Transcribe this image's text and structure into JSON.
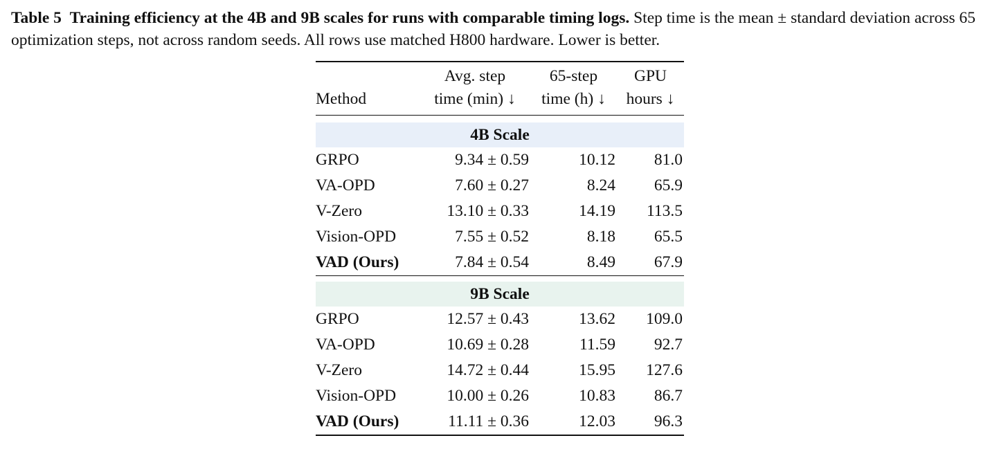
{
  "caption": {
    "label": "Table 5",
    "title": "Training efficiency at the 4B and 9B scales for runs with comparable timing logs.",
    "text": "Step time is the mean ± standard deviation across 65 optimization steps, not across random seeds. All rows use matched H800 hardware. Lower is better."
  },
  "table": {
    "headers": {
      "method": "Method",
      "step_line1": "Avg. step",
      "step_line2": "time (min) ↓",
      "time_line1": "65-step",
      "time_line2": "time (h) ↓",
      "gpu_line1": "GPU",
      "gpu_line2": "hours ↓"
    },
    "sections": [
      {
        "title": "4B Scale",
        "rows": [
          {
            "method": "GRPO",
            "step": "9.34 ± 0.59",
            "time": "10.12",
            "gpu": "81.0"
          },
          {
            "method": "VA-OPD",
            "step": "7.60 ± 0.27",
            "time": "8.24",
            "gpu": "65.9"
          },
          {
            "method": "V-Zero",
            "step": "13.10 ± 0.33",
            "time": "14.19",
            "gpu": "113.5"
          },
          {
            "method": "Vision-OPD",
            "step": "7.55 ± 0.52",
            "time": "8.18",
            "gpu": "65.5"
          },
          {
            "method": "VAD (Ours)",
            "step": "7.84 ± 0.54",
            "time": "8.49",
            "gpu": "67.9"
          }
        ]
      },
      {
        "title": "9B Scale",
        "rows": [
          {
            "method": "GRPO",
            "step": "12.57 ± 0.43",
            "time": "13.62",
            "gpu": "109.0"
          },
          {
            "method": "VA-OPD",
            "step": "10.69 ± 0.28",
            "time": "11.59",
            "gpu": "92.7"
          },
          {
            "method": "V-Zero",
            "step": "14.72 ± 0.44",
            "time": "15.95",
            "gpu": "127.6"
          },
          {
            "method": "Vision-OPD",
            "step": "10.00 ± 0.26",
            "time": "10.83",
            "gpu": "86.7"
          },
          {
            "method": "VAD (Ours)",
            "step": "11.11 ± 0.36",
            "time": "12.03",
            "gpu": "96.3"
          }
        ]
      }
    ]
  }
}
